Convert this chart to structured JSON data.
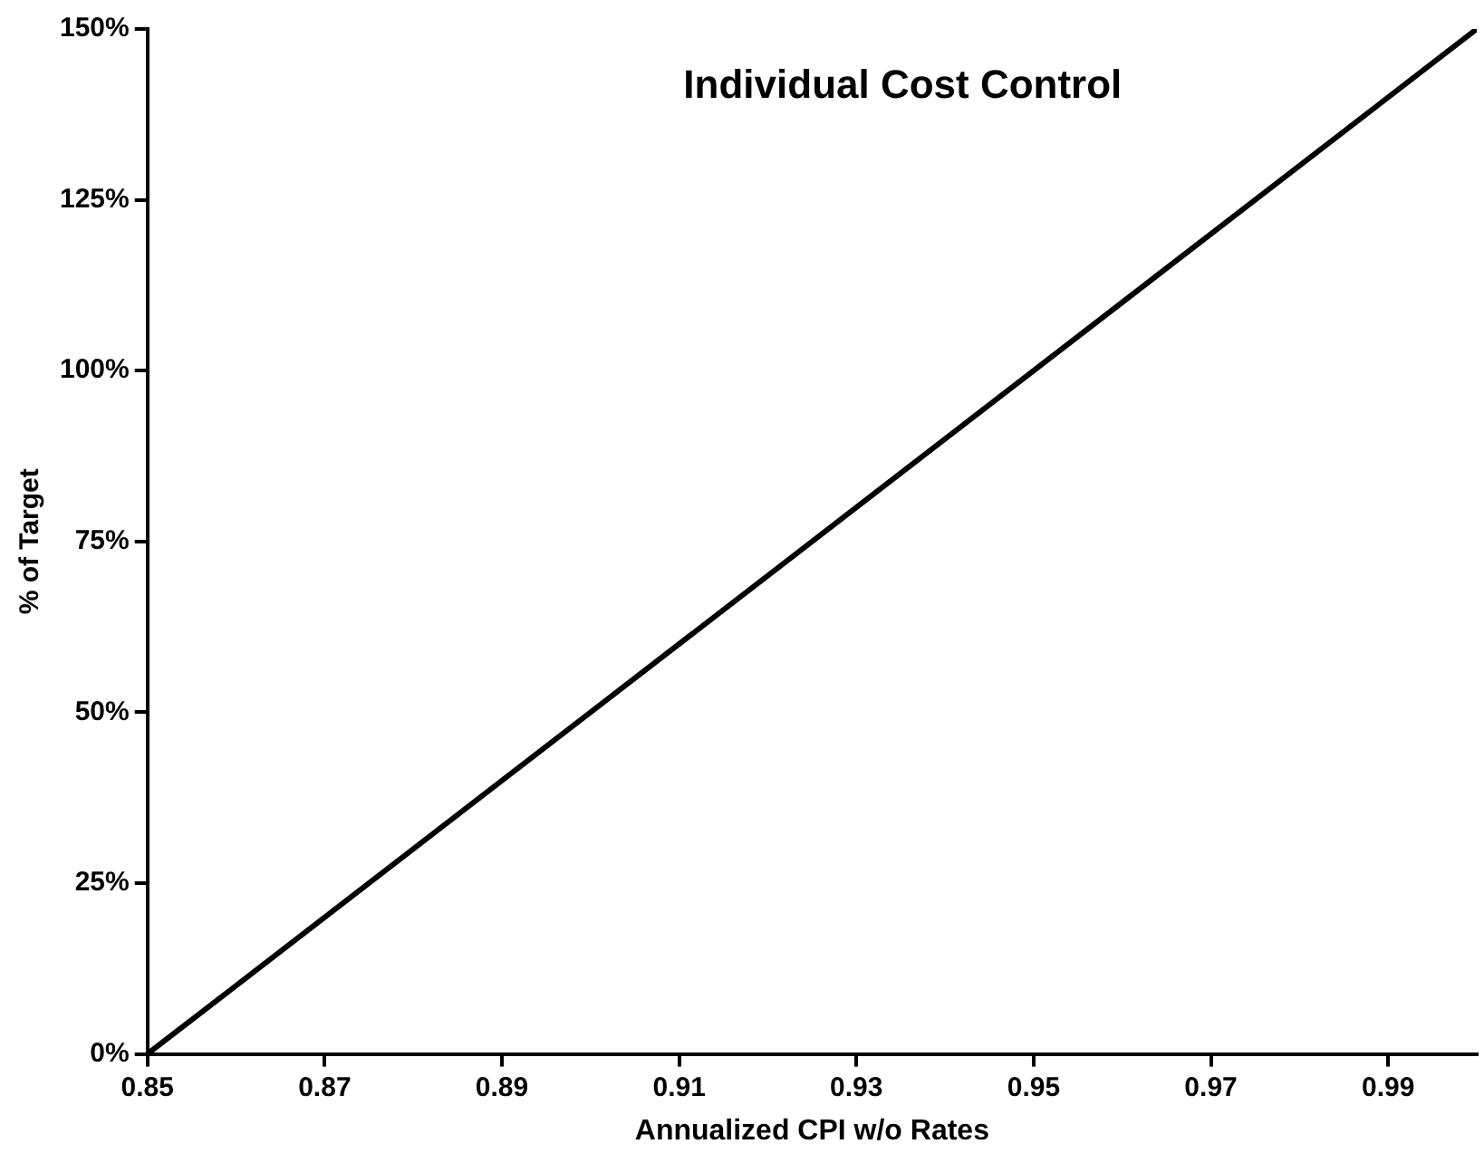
{
  "chart_data": {
    "type": "line",
    "title": "Individual Cost Control",
    "xlabel": "Annualized CPI w/o Rates",
    "ylabel": "% of Target",
    "x": [
      0.85,
      1.0
    ],
    "series": [
      {
        "color": "#000000",
        "values": [
          0,
          150
        ]
      }
    ],
    "xlim": [
      0.85,
      1.0
    ],
    "xticks": [
      0.85,
      0.87,
      0.89,
      0.91,
      0.93,
      0.95,
      0.97,
      0.99
    ],
    "ylim": [
      0,
      150
    ],
    "yticks": [
      {
        "value": 0,
        "label": "0%"
      },
      {
        "value": 25,
        "label": "25%"
      },
      {
        "value": 50,
        "label": "50%"
      },
      {
        "value": 75,
        "label": "75%"
      },
      {
        "value": 100,
        "label": "100%"
      },
      {
        "value": 125,
        "label": "125%"
      },
      {
        "value": 150,
        "label": "150%"
      }
    ],
    "marker": "none",
    "legend": false
  }
}
